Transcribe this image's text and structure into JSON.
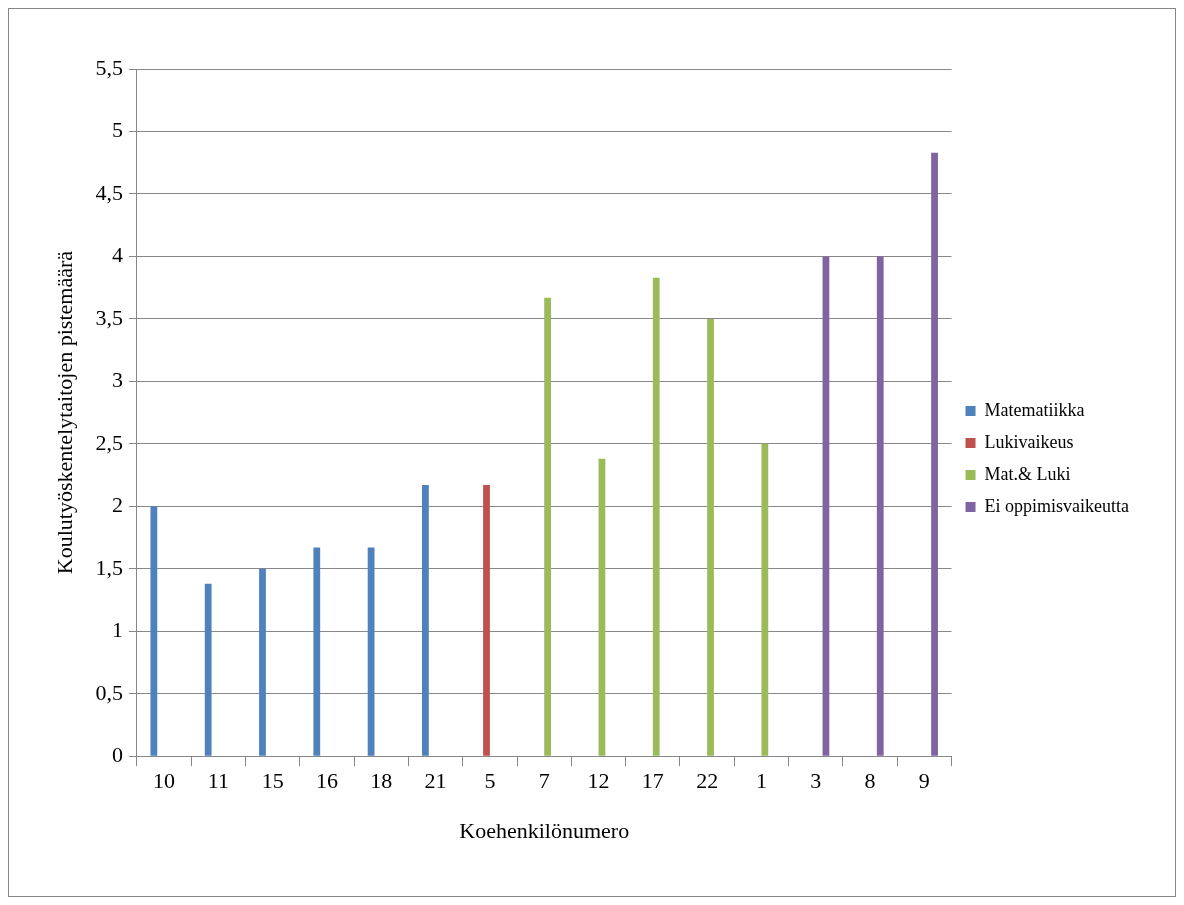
{
  "chart_data": {
    "type": "bar",
    "xlabel": "Koehenkilönumero",
    "ylabel": "Koulutyöskentelytaitojen pistemäärä",
    "categories": [
      "10",
      "11",
      "15",
      "16",
      "18",
      "21",
      "5",
      "7",
      "12",
      "17",
      "22",
      "1",
      "3",
      "8",
      "9"
    ],
    "series": [
      {
        "name": "Matematiikka",
        "color": "#4f81bd",
        "values": [
          2,
          1.38,
          1.5,
          1.67,
          1.67,
          2.17,
          null,
          null,
          null,
          null,
          null,
          null,
          null,
          null,
          null
        ]
      },
      {
        "name": "Lukivaikeus",
        "color": "#c0504d",
        "values": [
          null,
          null,
          null,
          null,
          null,
          null,
          2.17,
          null,
          null,
          null,
          null,
          null,
          null,
          null,
          null
        ]
      },
      {
        "name": "Mat.& Luki",
        "color": "#9bbb59",
        "values": [
          null,
          null,
          null,
          null,
          null,
          null,
          null,
          3.67,
          2.38,
          3.83,
          3.5,
          2.5,
          null,
          null,
          null
        ]
      },
      {
        "name": "Ei oppimisvaikeutta",
        "color": "#8064a2",
        "values": [
          null,
          null,
          null,
          null,
          null,
          null,
          null,
          null,
          null,
          null,
          null,
          null,
          4,
          4,
          4.83
        ]
      }
    ],
    "ylim": [
      0,
      5.5
    ],
    "yticks": [
      0,
      {
        "value": 0.5,
        "label": "0,5"
      },
      1,
      {
        "value": 1.5,
        "label": "1,5"
      },
      2,
      {
        "value": 2.5,
        "label": "2,5"
      },
      3,
      {
        "value": 3.5,
        "label": "3,5"
      },
      4,
      {
        "value": 4.5,
        "label": "4,5"
      },
      5,
      {
        "value": 5.5,
        "label": "5,5"
      }
    ],
    "grid": "y",
    "legend": "right"
  }
}
